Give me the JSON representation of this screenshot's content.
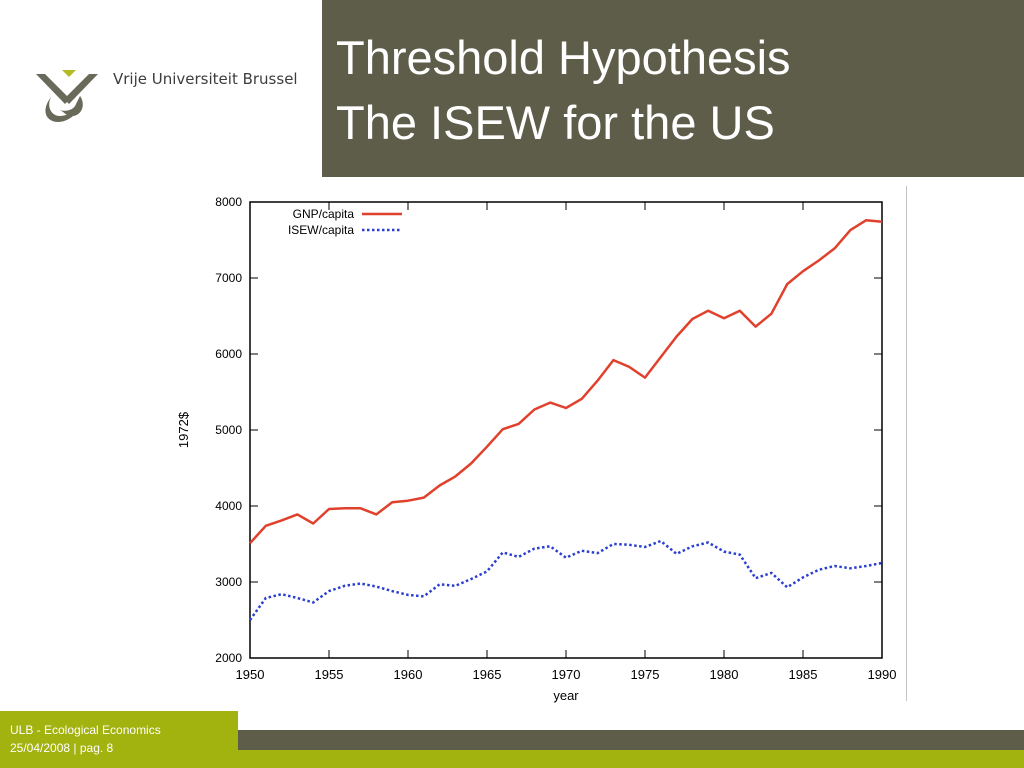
{
  "header": {
    "logo_text": "Vrije Universiteit Brussel",
    "title_line1": "Threshold Hypothesis",
    "title_line2": "The ISEW for the US"
  },
  "footer": {
    "line1": "ULB - Ecological Economics",
    "line2": "25/04/2008 |   pag. 8"
  },
  "colors": {
    "title_band": "#5d5d49",
    "footer_green": "#a2b20e",
    "gnp": "#e0412c",
    "isew": "#2a3fd1"
  },
  "chart_data": {
    "type": "line",
    "xlabel": "year",
    "ylabel": "1972$",
    "xlim": [
      1950,
      1990
    ],
    "ylim": [
      2000,
      8000
    ],
    "xticks": [
      1950,
      1955,
      1960,
      1965,
      1970,
      1975,
      1980,
      1985,
      1990
    ],
    "yticks": [
      2000,
      3000,
      4000,
      5000,
      6000,
      7000,
      8000
    ],
    "legend_position": "top-left",
    "grid": false,
    "x": [
      1950,
      1951,
      1952,
      1953,
      1954,
      1955,
      1956,
      1957,
      1958,
      1959,
      1960,
      1961,
      1962,
      1963,
      1964,
      1965,
      1966,
      1967,
      1968,
      1969,
      1970,
      1971,
      1972,
      1973,
      1974,
      1975,
      1976,
      1977,
      1978,
      1979,
      1980,
      1981,
      1982,
      1983,
      1984,
      1985,
      1986,
      1987,
      1988,
      1989,
      1990
    ],
    "series": [
      {
        "name": "GNP/capita",
        "style": "solid",
        "values": [
          3510,
          3740,
          3810,
          3890,
          3770,
          3960,
          3970,
          3970,
          3890,
          4050,
          4070,
          4110,
          4270,
          4390,
          4560,
          4780,
          5010,
          5080,
          5270,
          5360,
          5290,
          5410,
          5650,
          5920,
          5830,
          5690,
          5960,
          6230,
          6460,
          6570,
          6470,
          6570,
          6360,
          6530,
          6920,
          7090,
          7230,
          7390,
          7630,
          7760,
          7740
        ]
      },
      {
        "name": "ISEW/capita",
        "style": "dotted",
        "values": [
          2500,
          2790,
          2840,
          2790,
          2730,
          2880,
          2950,
          2980,
          2940,
          2880,
          2830,
          2810,
          2970,
          2950,
          3040,
          3140,
          3390,
          3330,
          3440,
          3470,
          3320,
          3410,
          3380,
          3500,
          3490,
          3460,
          3540,
          3370,
          3470,
          3520,
          3400,
          3360,
          3050,
          3120,
          2930,
          3060,
          3160,
          3210,
          3180,
          3210,
          3250
        ]
      }
    ]
  }
}
